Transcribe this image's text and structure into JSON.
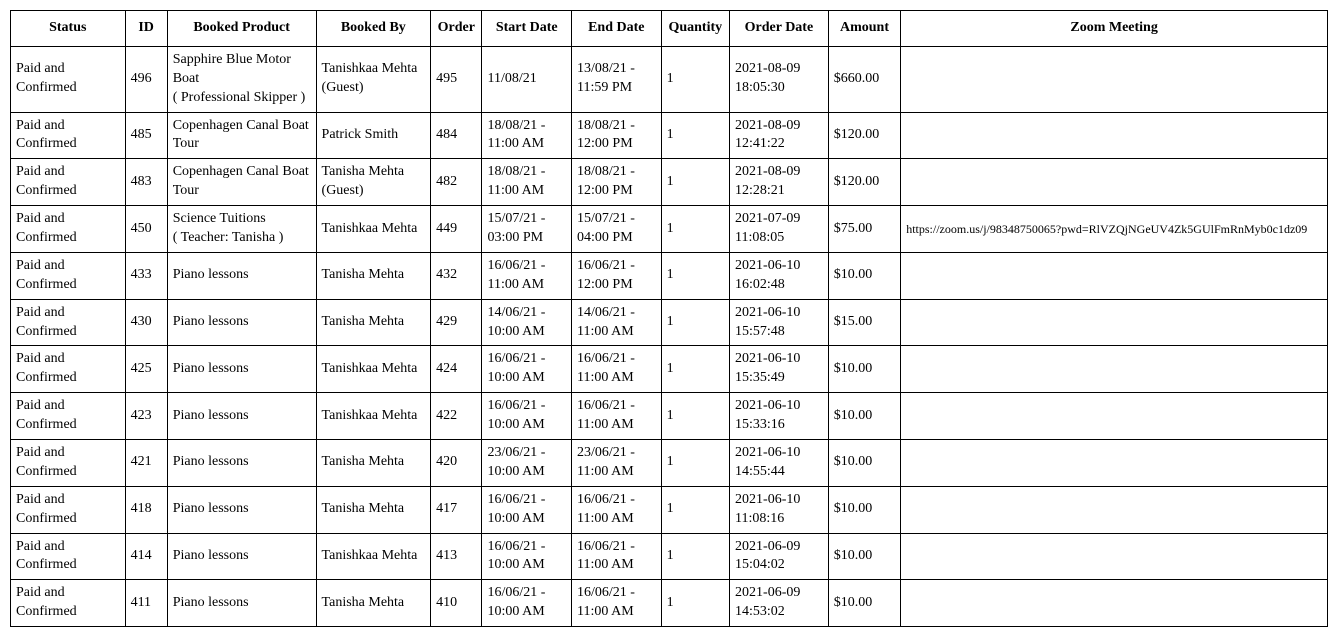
{
  "table": {
    "columns": [
      {
        "key": "status",
        "label": "Status",
        "class": "col-status"
      },
      {
        "key": "id",
        "label": "ID",
        "class": "col-id"
      },
      {
        "key": "product",
        "label": "Booked Product",
        "class": "col-product"
      },
      {
        "key": "booked_by",
        "label": "Booked By",
        "class": "col-bookedby"
      },
      {
        "key": "order",
        "label": "Order",
        "class": "col-order"
      },
      {
        "key": "start_date",
        "label": "Start Date",
        "class": "col-start"
      },
      {
        "key": "end_date",
        "label": "End Date",
        "class": "col-end"
      },
      {
        "key": "quantity",
        "label": "Quantity",
        "class": "col-qty"
      },
      {
        "key": "order_date",
        "label": "Order Date",
        "class": "col-orddate"
      },
      {
        "key": "amount",
        "label": "Amount",
        "class": "col-amount"
      },
      {
        "key": "zoom",
        "label": "Zoom Meeting",
        "class": "col-zoom"
      }
    ],
    "rows": [
      {
        "status": "Paid and Confirmed",
        "id": "496",
        "product": "Sapphire Blue Motor Boat\n( Professional Skipper )",
        "booked_by": "Tanishkaa Mehta (Guest)",
        "order": "495",
        "start_date": "11/08/21",
        "end_date": "13/08/21 - 11:59 PM",
        "quantity": "1",
        "order_date": "2021-08-09 18:05:30",
        "amount": "$660.00",
        "zoom": ""
      },
      {
        "status": "Paid and Confirmed",
        "id": "485",
        "product": "Copenhagen Canal Boat Tour",
        "booked_by": "Patrick Smith",
        "order": "484",
        "start_date": "18/08/21 - 11:00 AM",
        "end_date": "18/08/21 - 12:00 PM",
        "quantity": "1",
        "order_date": "2021-08-09 12:41:22",
        "amount": "$120.00",
        "zoom": ""
      },
      {
        "status": "Paid and Confirmed",
        "id": "483",
        "product": "Copenhagen Canal Boat Tour",
        "booked_by": "Tanisha Mehta (Guest)",
        "order": "482",
        "start_date": "18/08/21 - 11:00 AM",
        "end_date": "18/08/21 - 12:00 PM",
        "quantity": "1",
        "order_date": "2021-08-09 12:28:21",
        "amount": "$120.00",
        "zoom": ""
      },
      {
        "status": "Paid and Confirmed",
        "id": "450",
        "product": "Science Tuitions\n( Teacher: Tanisha )",
        "booked_by": "Tanishkaa Mehta",
        "order": "449",
        "start_date": "15/07/21 - 03:00 PM",
        "end_date": "15/07/21 - 04:00 PM",
        "quantity": "1",
        "order_date": "2021-07-09 11:08:05",
        "amount": "$75.00",
        "zoom": "https://zoom.us/j/98348750065?pwd=RlVZQjNGeUV4Zk5GUlFmRnMyb0c1dz09"
      },
      {
        "status": "Paid and Confirmed",
        "id": "433",
        "product": "Piano lessons",
        "booked_by": "Tanisha Mehta",
        "order": "432",
        "start_date": "16/06/21 - 11:00 AM",
        "end_date": "16/06/21 - 12:00 PM",
        "quantity": "1",
        "order_date": "2021-06-10 16:02:48",
        "amount": "$10.00",
        "zoom": ""
      },
      {
        "status": "Paid and Confirmed",
        "id": "430",
        "product": "Piano lessons",
        "booked_by": "Tanisha Mehta",
        "order": "429",
        "start_date": "14/06/21 - 10:00 AM",
        "end_date": "14/06/21 - 11:00 AM",
        "quantity": "1",
        "order_date": "2021-06-10 15:57:48",
        "amount": "$15.00",
        "zoom": ""
      },
      {
        "status": "Paid and Confirmed",
        "id": "425",
        "product": "Piano lessons",
        "booked_by": "Tanishkaa Mehta",
        "order": "424",
        "start_date": "16/06/21 - 10:00 AM",
        "end_date": "16/06/21 - 11:00 AM",
        "quantity": "1",
        "order_date": "2021-06-10 15:35:49",
        "amount": "$10.00",
        "zoom": ""
      },
      {
        "status": "Paid and Confirmed",
        "id": "423",
        "product": "Piano lessons",
        "booked_by": "Tanishkaa Mehta",
        "order": "422",
        "start_date": "16/06/21 - 10:00 AM",
        "end_date": "16/06/21 - 11:00 AM",
        "quantity": "1",
        "order_date": "2021-06-10 15:33:16",
        "amount": "$10.00",
        "zoom": ""
      },
      {
        "status": "Paid and Confirmed",
        "id": "421",
        "product": "Piano lessons",
        "booked_by": "Tanisha Mehta",
        "order": "420",
        "start_date": "23/06/21 - 10:00 AM",
        "end_date": "23/06/21 - 11:00 AM",
        "quantity": "1",
        "order_date": "2021-06-10 14:55:44",
        "amount": "$10.00",
        "zoom": ""
      },
      {
        "status": "Paid and Confirmed",
        "id": "418",
        "product": "Piano lessons",
        "booked_by": "Tanisha Mehta",
        "order": "417",
        "start_date": "16/06/21 - 10:00 AM",
        "end_date": "16/06/21 - 11:00 AM",
        "quantity": "1",
        "order_date": "2021-06-10 11:08:16",
        "amount": "$10.00",
        "zoom": ""
      },
      {
        "status": "Paid and Confirmed",
        "id": "414",
        "product": "Piano lessons",
        "booked_by": "Tanishkaa Mehta",
        "order": "413",
        "start_date": "16/06/21 - 10:00 AM",
        "end_date": "16/06/21 - 11:00 AM",
        "quantity": "1",
        "order_date": "2021-06-09 15:04:02",
        "amount": "$10.00",
        "zoom": ""
      },
      {
        "status": "Paid and Confirmed",
        "id": "411",
        "product": "Piano lessons",
        "booked_by": "Tanisha Mehta",
        "order": "410",
        "start_date": "16/06/21 - 10:00 AM",
        "end_date": "16/06/21 - 11:00 AM",
        "quantity": "1",
        "order_date": "2021-06-09 14:53:02",
        "amount": "$10.00",
        "zoom": ""
      }
    ]
  }
}
